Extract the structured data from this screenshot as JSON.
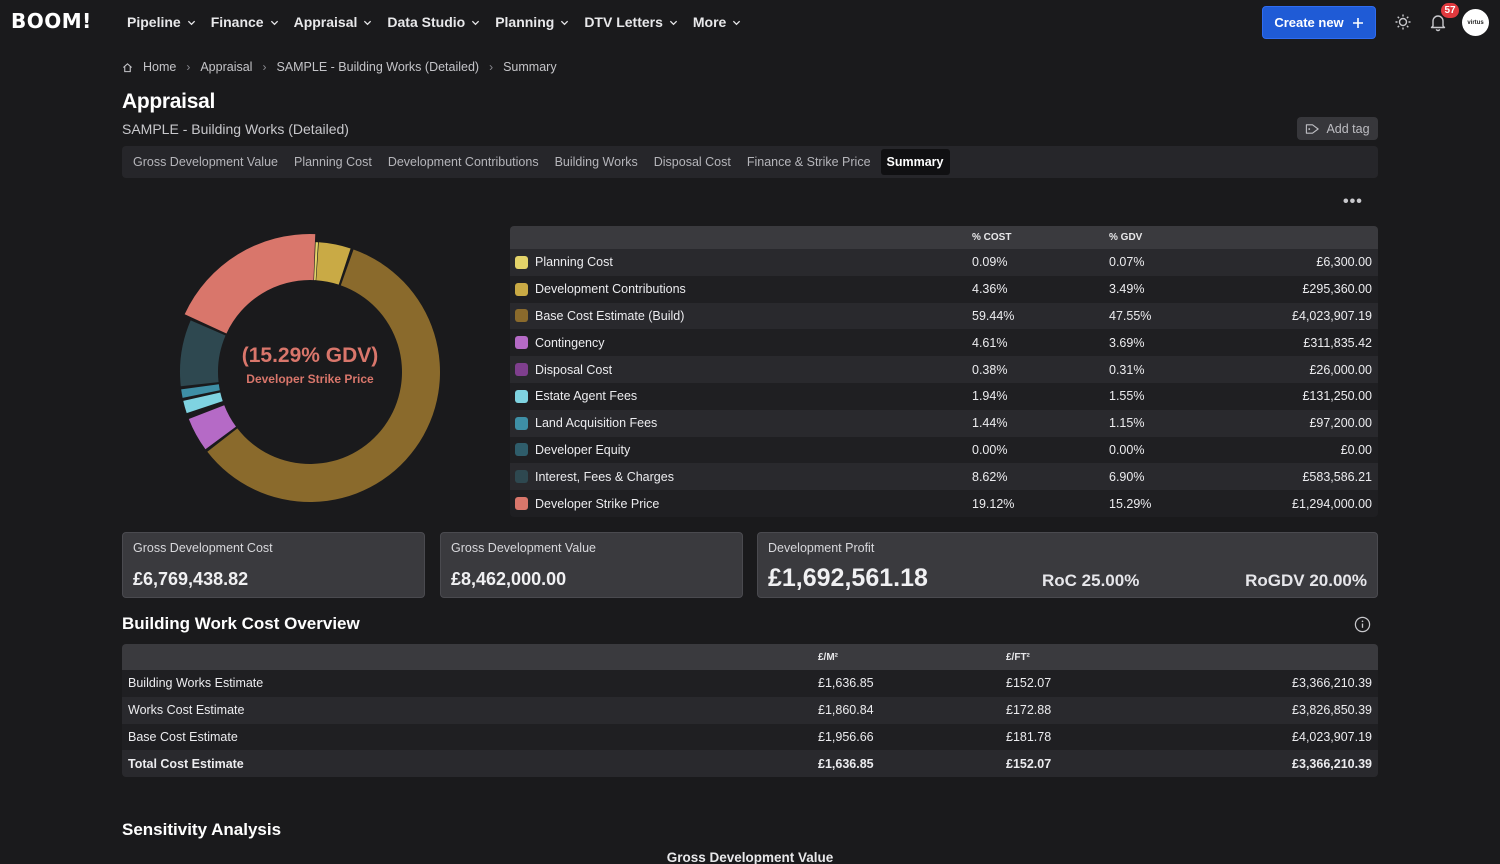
{
  "app": {
    "logo": "BOOM!"
  },
  "nav": [
    {
      "label": "Pipeline"
    },
    {
      "label": "Finance"
    },
    {
      "label": "Appraisal"
    },
    {
      "label": "Data Studio"
    },
    {
      "label": "Planning"
    },
    {
      "label": "DTV Letters"
    },
    {
      "label": "More"
    }
  ],
  "header": {
    "create_label": "Create new",
    "notification_count": "57",
    "avatar_text": "virtus"
  },
  "breadcrumb": [
    "Home",
    "Appraisal",
    "SAMPLE - Building Works (Detailed)",
    "Summary"
  ],
  "page": {
    "title": "Appraisal",
    "subtitle": "SAMPLE - Building Works (Detailed)",
    "add_tag_label": "Add tag"
  },
  "tabs": [
    {
      "label": "Gross Development Value",
      "active": false
    },
    {
      "label": "Planning Cost",
      "active": false
    },
    {
      "label": "Development Contributions",
      "active": false
    },
    {
      "label": "Building Works",
      "active": false
    },
    {
      "label": "Disposal Cost",
      "active": false
    },
    {
      "label": "Finance & Strike Price",
      "active": false
    },
    {
      "label": "Summary",
      "active": true
    }
  ],
  "donut": {
    "center_value": "(15.29% GDV)",
    "center_label": "Developer Strike Price"
  },
  "chart_data": {
    "type": "pie",
    "categories": [
      "Planning Cost",
      "Development Contributions",
      "Base Cost Estimate (Build)",
      "Contingency",
      "Disposal Cost",
      "Estate Agent Fees",
      "Land Acquisition Fees",
      "Developer Equity",
      "Interest, Fees & Charges",
      "Developer Strike Price"
    ],
    "values": [
      0.07,
      3.49,
      47.55,
      3.69,
      0.31,
      1.55,
      1.15,
      0.0,
      6.9,
      15.29
    ],
    "colors": [
      "#e3d36a",
      "#c9aa45",
      "#8a6a2c",
      "#b56ac6",
      "#7f3f8e",
      "#7fd3e1",
      "#3e8fa6",
      "#2f5d6b",
      "#2e4850",
      "#d9766b"
    ]
  },
  "summary_table": {
    "headers": {
      "name": "",
      "cost": "% COST",
      "gdv": "% GDV",
      "value": ""
    },
    "rows": [
      {
        "name": "Planning Cost",
        "color": "#e3d36a",
        "cost": "0.09%",
        "gdv": "0.07%",
        "value": "£6,300.00"
      },
      {
        "name": "Development Contributions",
        "color": "#c9aa45",
        "cost": "4.36%",
        "gdv": "3.49%",
        "value": "£295,360.00"
      },
      {
        "name": "Base Cost Estimate (Build)",
        "color": "#8a6a2c",
        "cost": "59.44%",
        "gdv": "47.55%",
        "value": "£4,023,907.19"
      },
      {
        "name": "Contingency",
        "color": "#b56ac6",
        "cost": "4.61%",
        "gdv": "3.69%",
        "value": "£311,835.42"
      },
      {
        "name": "Disposal Cost",
        "color": "#7f3f8e",
        "cost": "0.38%",
        "gdv": "0.31%",
        "value": "£26,000.00"
      },
      {
        "name": "Estate Agent Fees",
        "color": "#7fd3e1",
        "cost": "1.94%",
        "gdv": "1.55%",
        "value": "£131,250.00"
      },
      {
        "name": "Land Acquisition Fees",
        "color": "#3e8fa6",
        "cost": "1.44%",
        "gdv": "1.15%",
        "value": "£97,200.00"
      },
      {
        "name": "Developer Equity",
        "color": "#2f5d6b",
        "cost": "0.00%",
        "gdv": "0.00%",
        "value": "£0.00"
      },
      {
        "name": "Interest, Fees & Charges",
        "color": "#2e4850",
        "cost": "8.62%",
        "gdv": "6.90%",
        "value": "£583,586.21"
      },
      {
        "name": "Developer Strike Price",
        "color": "#d9766b",
        "cost": "19.12%",
        "gdv": "15.29%",
        "value": "£1,294,000.00"
      }
    ]
  },
  "cards": {
    "gdc": {
      "label": "Gross Development Cost",
      "value": "£6,769,438.82"
    },
    "gdv": {
      "label": "Gross Development Value",
      "value": "£8,462,000.00"
    },
    "profit": {
      "label": "Development Profit",
      "value": "£1,692,561.18",
      "roc": "RoC 25.00%",
      "rogdv": "RoGDV 20.00%"
    }
  },
  "building_work": {
    "title": "Building Work Cost Overview",
    "headers": {
      "name": "",
      "m2": "£/M²",
      "ft2": "£/FT²",
      "value": ""
    },
    "rows": [
      {
        "name": "Building Works Estimate",
        "m2": "£1,636.85",
        "ft2": "£152.07",
        "value": "£3,366,210.39"
      },
      {
        "name": "Works Cost Estimate",
        "m2": "£1,860.84",
        "ft2": "£172.88",
        "value": "£3,826,850.39"
      },
      {
        "name": "Base Cost Estimate",
        "m2": "£1,956.66",
        "ft2": "£181.78",
        "value": "£4,023,907.19"
      },
      {
        "name": "Total Cost Estimate",
        "m2": "£1,636.85",
        "ft2": "£152.07",
        "value": "£3,366,210.39"
      }
    ]
  },
  "sensitivity": {
    "title": "Sensitivity Analysis",
    "caption": "Gross Development Value"
  }
}
